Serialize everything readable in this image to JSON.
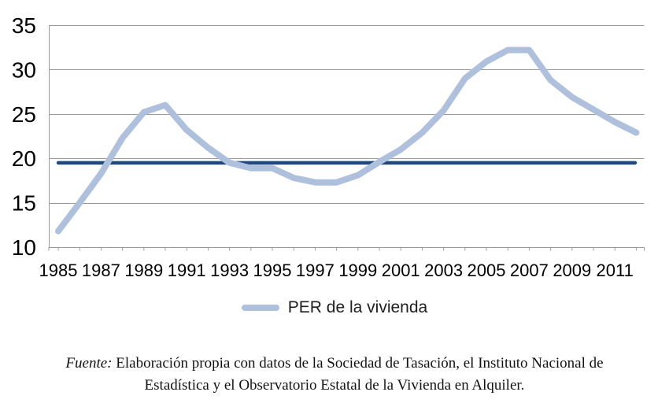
{
  "chart_data": {
    "type": "line",
    "title": "",
    "x": [
      1985,
      1986,
      1987,
      1988,
      1989,
      1990,
      1991,
      1992,
      1993,
      1994,
      1995,
      1996,
      1997,
      1998,
      1999,
      2000,
      2001,
      2002,
      2003,
      2004,
      2005,
      2006,
      2007,
      2008,
      2009,
      2010,
      2011,
      2012
    ],
    "series": [
      {
        "name": "PER de la vivienda",
        "color": "#AFC0DC",
        "values": [
          11.8,
          15.0,
          18.3,
          22.3,
          25.2,
          26.0,
          23.2,
          21.2,
          19.5,
          18.9,
          18.9,
          17.8,
          17.3,
          17.3,
          18.1,
          19.6,
          21.0,
          22.9,
          25.4,
          29.0,
          30.9,
          32.2,
          32.2,
          28.8,
          26.9,
          25.5,
          24.1,
          22.9
        ]
      }
    ],
    "reference_line": {
      "value": 19.5,
      "color": "#1F497D"
    },
    "xlabel": "",
    "ylabel": "",
    "ylim": [
      10,
      35
    ],
    "yticks": [
      10,
      15,
      20,
      25,
      30,
      35
    ],
    "xtick_labels": [
      "1985",
      "1987",
      "1989",
      "1991",
      "1993",
      "1995",
      "1997",
      "1999",
      "2001",
      "2003",
      "2005",
      "2007",
      "2009",
      "2011"
    ],
    "grid": "horizontal-major",
    "legend": {
      "label": "PER de la vivienda",
      "position": "bottom"
    }
  },
  "legend": {
    "label": "PER de la vivienda"
  },
  "footer": {
    "source_label": "Fuente:",
    "line1_rest": "Elaboración propia con datos de la Sociedad de Tasación, el Instituto Nacional de",
    "line2": "Estadística y el Observatorio Estatal de la Vivienda en Alquiler."
  },
  "colors": {
    "series_line": "#AFC0DC",
    "reference_line": "#1F497D",
    "gridline": "#9A9A9A",
    "axis_text": "#000000",
    "legend_text": "#1F1F1F",
    "footer_text": "#121212"
  }
}
